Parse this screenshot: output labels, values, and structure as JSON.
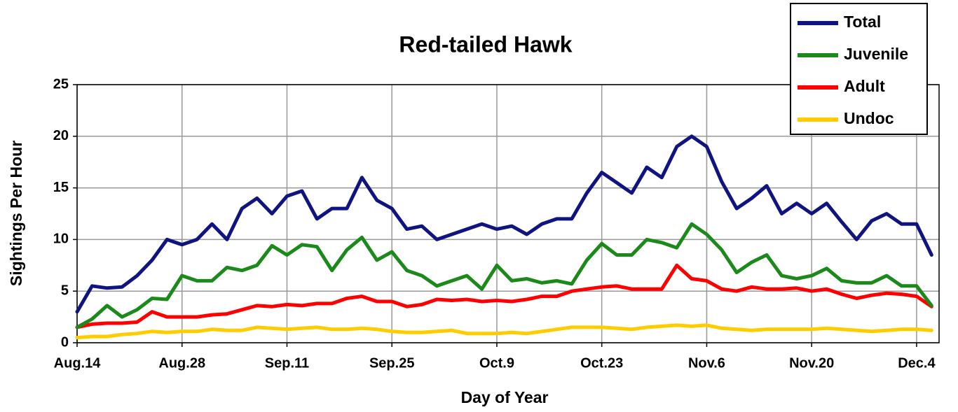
{
  "chart_data": {
    "type": "line",
    "title": "Red-tailed Hawk",
    "x_label": "Day of Year",
    "y_label": "Sightings Per Hour",
    "x": [
      0,
      2,
      4,
      6,
      8,
      10,
      12,
      14,
      16,
      18,
      20,
      22,
      24,
      26,
      28,
      30,
      32,
      34,
      36,
      38,
      40,
      42,
      44,
      46,
      48,
      50,
      52,
      54,
      56,
      58,
      60,
      62,
      64,
      66,
      68,
      70,
      72,
      74,
      76,
      78,
      80,
      82,
      84,
      86,
      88,
      90,
      92,
      94,
      96,
      98,
      100,
      102,
      104,
      106,
      108,
      110,
      112,
      114
    ],
    "series": [
      {
        "name": "Total",
        "color": "#0f1480",
        "values": [
          3,
          5.5,
          5.3,
          5.4,
          6.5,
          8,
          10,
          9.5,
          10,
          11.5,
          10,
          13,
          14,
          12.5,
          14.2,
          14.7,
          12,
          13,
          13,
          16,
          13.8,
          13,
          11,
          11.3,
          10,
          10.5,
          11,
          11.5,
          11,
          11.3,
          10.5,
          11.5,
          12,
          12,
          14.5,
          16.5,
          15.5,
          14.5,
          17,
          16,
          19,
          20,
          19,
          15.6,
          13,
          14,
          15.2,
          12.5,
          13.5,
          12.5,
          13.5,
          11.7,
          10,
          11.8,
          12.5,
          11.5,
          11.5,
          8.5
        ]
      },
      {
        "name": "Juvenile",
        "color": "#1b8a1b",
        "values": [
          1.5,
          2.3,
          3.6,
          2.5,
          3.2,
          4.3,
          4.2,
          6.5,
          6,
          6,
          7.3,
          7,
          7.5,
          9.4,
          8.5,
          9.5,
          9.3,
          7,
          9,
          10.2,
          8,
          8.8,
          7,
          6.5,
          5.5,
          6,
          6.5,
          5.2,
          7.5,
          6,
          6.2,
          5.8,
          6,
          5.7,
          8,
          9.6,
          8.5,
          8.5,
          10,
          9.7,
          9.2,
          11.5,
          10.5,
          9,
          6.8,
          7.8,
          8.5,
          6.5,
          6.2,
          6.5,
          7.2,
          6,
          5.8,
          5.8,
          6.5,
          5.5,
          5.5,
          3.6
        ]
      },
      {
        "name": "Adult",
        "color": "#ff0000",
        "values": [
          1.5,
          1.8,
          1.9,
          1.9,
          2,
          3,
          2.5,
          2.5,
          2.5,
          2.7,
          2.8,
          3.2,
          3.6,
          3.5,
          3.7,
          3.6,
          3.8,
          3.8,
          4.3,
          4.5,
          4,
          4,
          3.5,
          3.7,
          4.2,
          4.1,
          4.2,
          4,
          4.1,
          4,
          4.2,
          4.5,
          4.5,
          5,
          5.2,
          5.4,
          5.5,
          5.2,
          5.2,
          5.2,
          7.5,
          6.2,
          6,
          5.2,
          5,
          5.4,
          5.2,
          5.2,
          5.3,
          5,
          5.2,
          4.7,
          4.3,
          4.6,
          4.8,
          4.7,
          4.5,
          3.5
        ]
      },
      {
        "name": "Undoc",
        "color": "#ffcc00",
        "values": [
          0.5,
          0.6,
          0.6,
          0.8,
          0.9,
          1.1,
          1,
          1.1,
          1.1,
          1.3,
          1.2,
          1.2,
          1.5,
          1.4,
          1.3,
          1.4,
          1.5,
          1.3,
          1.3,
          1.4,
          1.3,
          1.1,
          1,
          1,
          1.1,
          1.2,
          0.9,
          0.9,
          0.9,
          1,
          0.9,
          1.1,
          1.3,
          1.5,
          1.5,
          1.5,
          1.4,
          1.3,
          1.5,
          1.6,
          1.7,
          1.6,
          1.7,
          1.4,
          1.3,
          1.2,
          1.3,
          1.3,
          1.3,
          1.3,
          1.4,
          1.3,
          1.2,
          1.1,
          1.2,
          1.3,
          1.3,
          1.2
        ]
      }
    ],
    "xlim": [
      0,
      115
    ],
    "xticks": [
      {
        "value": 0,
        "label": "Aug.14"
      },
      {
        "value": 14,
        "label": "Aug.28"
      },
      {
        "value": 28,
        "label": "Sep.11"
      },
      {
        "value": 42,
        "label": "Sep.25"
      },
      {
        "value": 56,
        "label": "Oct.9"
      },
      {
        "value": 70,
        "label": "Oct.23"
      },
      {
        "value": 84,
        "label": "Nov.6"
      },
      {
        "value": 98,
        "label": "Nov.20"
      },
      {
        "value": 112,
        "label": "Dec.4"
      }
    ],
    "ylim": [
      0,
      25
    ],
    "yticks": [
      0,
      5,
      10,
      15,
      20,
      25
    ],
    "grid": true,
    "legend": "top-right"
  }
}
